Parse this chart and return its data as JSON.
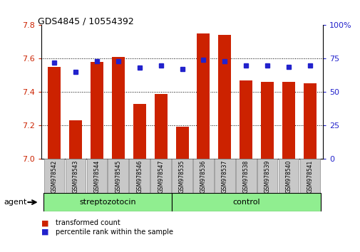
{
  "title": "GDS4845 / 10554392",
  "samples": [
    "GSM978542",
    "GSM978543",
    "GSM978544",
    "GSM978545",
    "GSM978546",
    "GSM978547",
    "GSM978535",
    "GSM978536",
    "GSM978537",
    "GSM978538",
    "GSM978539",
    "GSM978540",
    "GSM978541"
  ],
  "bar_values": [
    7.55,
    7.23,
    7.58,
    7.61,
    7.33,
    7.39,
    7.19,
    7.75,
    7.74,
    7.47,
    7.46,
    7.46,
    7.45
  ],
  "percentile_values": [
    72,
    65,
    73,
    73,
    68,
    70,
    67,
    74,
    73,
    70,
    70,
    69,
    70
  ],
  "group_divider": 6,
  "group_labels": [
    "streptozotocin",
    "control"
  ],
  "ylim_left": [
    7.0,
    7.8
  ],
  "ylim_right": [
    0,
    100
  ],
  "yticks_left": [
    7.0,
    7.2,
    7.4,
    7.6,
    7.8
  ],
  "yticks_right": [
    0,
    25,
    50,
    75,
    100
  ],
  "bar_color": "#CC2200",
  "dot_color": "#2222CC",
  "bar_width": 0.6,
  "left_tick_color": "#CC2200",
  "right_tick_color": "#2222CC",
  "agent_label": "agent",
  "legend_items": [
    {
      "label": "transformed count",
      "color": "#CC2200"
    },
    {
      "label": "percentile rank within the sample",
      "color": "#2222CC"
    }
  ],
  "group_color": "#90EE90",
  "tick_bg_color": "#C8C8C8",
  "baseline": 7.0
}
